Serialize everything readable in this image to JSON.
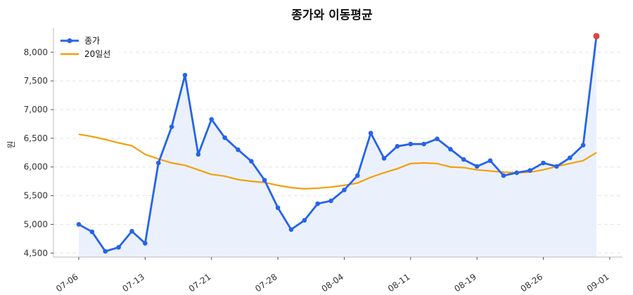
{
  "chart_data": {
    "type": "line",
    "title": "종가와 이동평균",
    "xlabel": "",
    "ylabel": "원",
    "ylim": [
      4430,
      8420
    ],
    "yticks": [
      4500,
      5000,
      5500,
      6000,
      6500,
      7000,
      7500,
      8000
    ],
    "ytick_labels": [
      "4,500",
      "5,000",
      "5,500",
      "6,000",
      "6,500",
      "7,000",
      "7,500",
      "8,000"
    ],
    "xticks": [
      "07-06",
      "07-13",
      "07-21",
      "07-28",
      "08-04",
      "08-11",
      "08-19",
      "08-26",
      "09-01"
    ],
    "xtick_index": [
      0,
      5,
      10,
      15,
      20,
      25,
      30,
      35,
      40
    ],
    "grid": true,
    "legend": "top-left",
    "colors": {
      "close": "#2563eb",
      "ma20": "#f59e0b",
      "area": "#e8eefb",
      "last_point": "#e5413b"
    },
    "series": [
      {
        "name": "종가",
        "values": [
          5000,
          4870,
          4530,
          4600,
          4880,
          4670,
          6070,
          6700,
          7600,
          6220,
          6830,
          6510,
          6300,
          6100,
          5770,
          5290,
          4910,
          5070,
          5360,
          5410,
          5600,
          5850,
          6590,
          6150,
          6360,
          6400,
          6400,
          6490,
          6310,
          6130,
          6010,
          6110,
          5850,
          5900,
          5940,
          6070,
          6010,
          6160,
          6380,
          8280
        ]
      },
      {
        "name": "20일선",
        "values": [
          6570,
          6530,
          6480,
          6420,
          6370,
          6220,
          6140,
          6070,
          6030,
          5950,
          5870,
          5840,
          5780,
          5750,
          5730,
          5680,
          5640,
          5620,
          5630,
          5650,
          5680,
          5720,
          5820,
          5900,
          5970,
          6060,
          6070,
          6060,
          6000,
          5990,
          5950,
          5930,
          5910,
          5900,
          5910,
          5950,
          6010,
          6060,
          6110,
          6250
        ]
      }
    ]
  }
}
